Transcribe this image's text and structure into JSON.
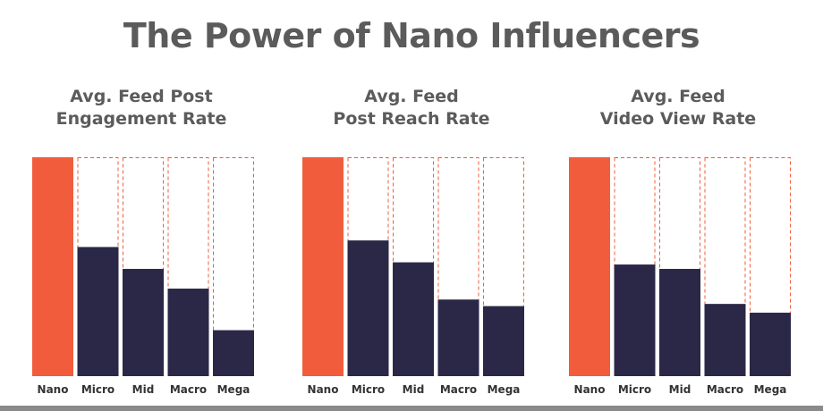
{
  "title": "The Power of Nano Influencers",
  "colors": {
    "nano": "#f15d3c",
    "other": "#2b2847",
    "outline": "#f15d3c",
    "text": "#5b5b5b",
    "label": "#333333"
  },
  "chart_data": [
    {
      "type": "bar",
      "title_lines": [
        "Avg. Feed Post",
        "Engagement Rate"
      ],
      "categories": [
        "Nano",
        "Micro",
        "Mid",
        "Macro",
        "Mega"
      ],
      "values": [
        100,
        59,
        49,
        40,
        21
      ],
      "ylim": [
        0,
        100
      ]
    },
    {
      "type": "bar",
      "title_lines": [
        "Avg. Feed",
        "Post Reach Rate"
      ],
      "categories": [
        "Nano",
        "Micro",
        "Mid",
        "Macro",
        "Mega"
      ],
      "values": [
        100,
        62,
        52,
        35,
        32
      ],
      "ylim": [
        0,
        100
      ]
    },
    {
      "type": "bar",
      "title_lines": [
        "Avg. Feed",
        "Video View Rate"
      ],
      "categories": [
        "Nano",
        "Micro",
        "Mid",
        "Macro",
        "Mega"
      ],
      "values": [
        100,
        51,
        49,
        33,
        29
      ],
      "ylim": [
        0,
        100
      ]
    }
  ]
}
